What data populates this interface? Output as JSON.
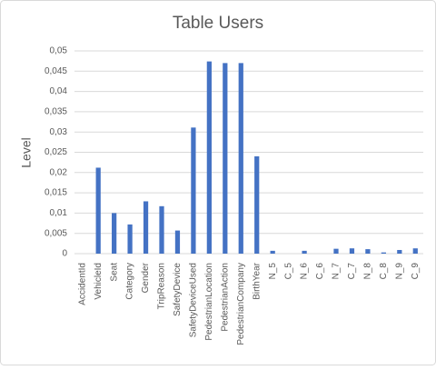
{
  "chart_data": {
    "type": "bar",
    "title": "Table Users",
    "y_label": "Level",
    "categories": [
      "AccidentId",
      "VehicleId",
      "Seat",
      "Category",
      "Gender",
      "TripReason",
      "SafetyDevice",
      "SafetyDeviceUsed",
      "PedestrianLocation",
      "PedestrianAction",
      "PedestrianCompany",
      "BirthYear",
      "N_5",
      "C_5",
      "N_6",
      "C_6",
      "N_7",
      "C_7",
      "N_8",
      "C_8",
      "N_9",
      "C_9"
    ],
    "values": [
      0,
      0.0212,
      0.01,
      0.0072,
      0.0129,
      0.0117,
      0.0057,
      0.0311,
      0.0474,
      0.047,
      0.047,
      0.024,
      0.0007,
      0,
      0.0007,
      0,
      0.0012,
      0.0013,
      0.0011,
      0.0003,
      0.0009,
      0.0013
    ],
    "color": "#4472c4",
    "ylim": [
      0,
      0.05
    ],
    "yticks": [
      0,
      {
        "value": 0.005,
        "label": "0,005"
      },
      {
        "value": 0.01,
        "label": "0,01"
      },
      {
        "value": 0.015,
        "label": "0,015"
      },
      {
        "value": 0.02,
        "label": "0,02"
      },
      {
        "value": 0.025,
        "label": "0,025"
      },
      {
        "value": 0.03,
        "label": "0,03"
      },
      {
        "value": 0.035,
        "label": "0,035"
      },
      {
        "value": 0.04,
        "label": "0,04"
      },
      {
        "value": 0.045,
        "label": "0,045"
      },
      {
        "value": 0.05,
        "label": "0,05"
      }
    ],
    "grid": true
  }
}
